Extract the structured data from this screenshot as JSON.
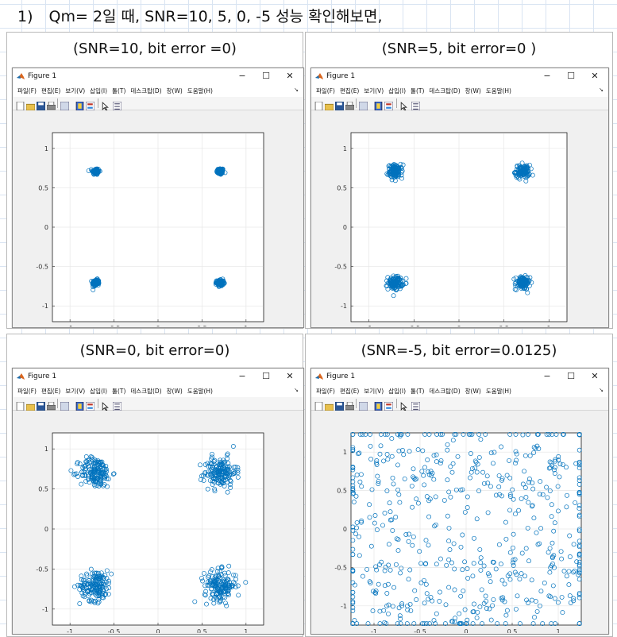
{
  "heading": {
    "number": "1)",
    "text": "Qm= 2일 때, SNR=10, 5, 0, -5 성능 확인해보면,"
  },
  "window": {
    "title": "Figure 1",
    "minimize_glyph": "−",
    "maximize_glyph": "☐",
    "close_glyph": "✕",
    "dock_glyph": "↘",
    "menu": [
      "파일(F)",
      "편집(E)",
      "보기(V)",
      "삽입(I)",
      "툴(T)",
      "데스크탑(D)",
      "창(W)",
      "도움말(H)"
    ],
    "toolbar_icons": [
      "new-figure-icon",
      "open-file-icon",
      "save-icon",
      "print-icon",
      "link-plot-icon",
      "insert-colorbar-icon",
      "insert-legend-icon",
      "edit-plot-icon",
      "property-inspector-icon"
    ],
    "colors": {
      "figure_bg": "#f0f0f0",
      "axes_bg": "#ffffff",
      "marker": "#0072bd",
      "grid": "#e6e6e6"
    }
  },
  "panels": [
    {
      "caption": "(SNR=10, bit error =0)"
    },
    {
      "caption": "(SNR=5, bit error=0 )"
    },
    {
      "caption": "(SNR=0, bit error=0)"
    },
    {
      "caption": "(SNR=-5, bit error=0.0125)"
    }
  ],
  "chart_data": [
    {
      "type": "scatter",
      "title": "",
      "xlabel": "",
      "ylabel": "",
      "xlim": [
        -1.2,
        1.2
      ],
      "ylim": [
        -1.2,
        1.2
      ],
      "xticks": [
        "-1",
        "-0.5",
        "0",
        "0.5",
        "1"
      ],
      "yticks": [
        "-1",
        "-0.5",
        "0",
        "0.5",
        "1"
      ],
      "grid": true,
      "marker": "open-circle",
      "clusters": [
        {
          "center": [
            0.7071,
            0.7071
          ],
          "spread": 0.02,
          "count": 80
        },
        {
          "center": [
            -0.7071,
            0.7071
          ],
          "spread": 0.02,
          "count": 80
        },
        {
          "center": [
            -0.7071,
            -0.7071
          ],
          "spread": 0.02,
          "count": 80
        },
        {
          "center": [
            0.7071,
            -0.7071
          ],
          "spread": 0.02,
          "count": 80
        }
      ]
    },
    {
      "type": "scatter",
      "title": "",
      "xlabel": "",
      "ylabel": "",
      "xlim": [
        -1.2,
        1.2
      ],
      "ylim": [
        -1.2,
        1.2
      ],
      "xticks": [
        "-1",
        "-0.5",
        "0",
        "0.5",
        "1"
      ],
      "yticks": [
        "-1",
        "-0.5",
        "0",
        "0.5",
        "1"
      ],
      "grid": true,
      "marker": "open-circle",
      "clusters": [
        {
          "center": [
            0.7071,
            0.7071
          ],
          "spread": 0.04,
          "count": 110
        },
        {
          "center": [
            -0.7071,
            0.7071
          ],
          "spread": 0.04,
          "count": 110
        },
        {
          "center": [
            -0.7071,
            -0.7071
          ],
          "spread": 0.04,
          "count": 110
        },
        {
          "center": [
            0.7071,
            -0.7071
          ],
          "spread": 0.04,
          "count": 110
        }
      ]
    },
    {
      "type": "scatter",
      "title": "",
      "xlabel": "",
      "ylabel": "",
      "xlim": [
        -1.2,
        1.2
      ],
      "ylim": [
        -1.2,
        1.2
      ],
      "xticks": [
        "-1",
        "-0.5",
        "0",
        "0.5",
        "1"
      ],
      "yticks": [
        "-1",
        "-0.5",
        "0",
        "0.5",
        "1"
      ],
      "grid": true,
      "marker": "open-circle",
      "clusters": [
        {
          "center": [
            0.7071,
            0.7071
          ],
          "spread": 0.09,
          "count": 160
        },
        {
          "center": [
            -0.7071,
            0.7071
          ],
          "spread": 0.09,
          "count": 160
        },
        {
          "center": [
            -0.7071,
            -0.7071
          ],
          "spread": 0.09,
          "count": 160
        },
        {
          "center": [
            0.7071,
            -0.7071
          ],
          "spread": 0.09,
          "count": 160
        }
      ]
    },
    {
      "type": "scatter",
      "title": "",
      "xlabel": "",
      "ylabel": "",
      "xlim": [
        -1.25,
        1.25
      ],
      "ylim": [
        -1.25,
        1.25
      ],
      "xticks": [
        "-1",
        "-0.5",
        "0",
        "0.5",
        "1"
      ],
      "yticks": [
        "-1",
        "-0.5",
        "0",
        "0.5",
        "1"
      ],
      "grid": true,
      "marker": "open-circle",
      "clusters": [
        {
          "center": [
            0.7071,
            0.7071
          ],
          "spread": 0.45,
          "count": 140
        },
        {
          "center": [
            -0.7071,
            0.7071
          ],
          "spread": 0.45,
          "count": 140
        },
        {
          "center": [
            -0.7071,
            -0.7071
          ],
          "spread": 0.45,
          "count": 140
        },
        {
          "center": [
            0.7071,
            -0.7071
          ],
          "spread": 0.45,
          "count": 140
        }
      ],
      "clipped_to_axes": true
    }
  ]
}
